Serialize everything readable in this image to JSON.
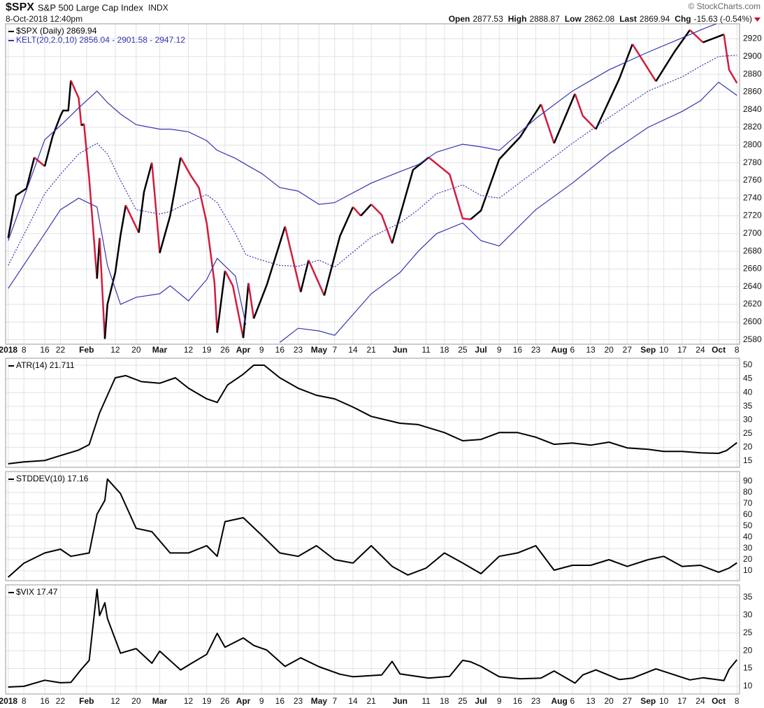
{
  "chart_data": [
    {
      "type": "line",
      "title": "$SPX",
      "subtitle": "S&P 500 Large Cap Index",
      "exchange": "INDX",
      "date": "8-Oct-2018 12:40pm",
      "credit": "© StockCharts.com",
      "quote": [
        {
          "label": "Open",
          "value": 2877.53
        },
        {
          "label": "High",
          "value": 2888.87
        },
        {
          "label": "Low",
          "value": 2862.08
        },
        {
          "label": "Last",
          "value": 2869.94
        },
        {
          "label": "Chg",
          "value": "-15.63 (-0.54%)"
        }
      ],
      "xlim": [
        "2018-01-01",
        "2018-10-09"
      ],
      "xticks": [
        {
          "value": "2018-01-02",
          "label": "2018"
        },
        {
          "value": "2018-01-08",
          "label": "8"
        },
        {
          "value": "2018-01-16",
          "label": "16"
        },
        {
          "value": "2018-01-22",
          "label": "22"
        },
        {
          "value": "2018-02-01",
          "label": "Feb"
        },
        {
          "value": "2018-02-12",
          "label": "12"
        },
        {
          "value": "2018-02-20",
          "label": "20"
        },
        {
          "value": "2018-03-01",
          "label": "Mar"
        },
        {
          "value": "2018-03-12",
          "label": "12"
        },
        {
          "value": "2018-03-19",
          "label": "19"
        },
        {
          "value": "2018-03-26",
          "label": "26"
        },
        {
          "value": "2018-04-02",
          "label": "Apr"
        },
        {
          "value": "2018-04-09",
          "label": "9"
        },
        {
          "value": "2018-04-16",
          "label": "16"
        },
        {
          "value": "2018-04-23",
          "label": "23"
        },
        {
          "value": "2018-05-01",
          "label": "May"
        },
        {
          "value": "2018-05-07",
          "label": "7"
        },
        {
          "value": "2018-05-14",
          "label": "14"
        },
        {
          "value": "2018-05-21",
          "label": "21"
        },
        {
          "value": "2018-06-01",
          "label": "Jun"
        },
        {
          "value": "2018-06-11",
          "label": "11"
        },
        {
          "value": "2018-06-18",
          "label": "18"
        },
        {
          "value": "2018-06-25",
          "label": "25"
        },
        {
          "value": "2018-07-02",
          "label": "Jul"
        },
        {
          "value": "2018-07-09",
          "label": "9"
        },
        {
          "value": "2018-07-16",
          "label": "16"
        },
        {
          "value": "2018-07-23",
          "label": "23"
        },
        {
          "value": "2018-08-01",
          "label": "Aug"
        },
        {
          "value": "2018-08-06",
          "label": "6"
        },
        {
          "value": "2018-08-13",
          "label": "13"
        },
        {
          "value": "2018-08-20",
          "label": "20"
        },
        {
          "value": "2018-08-27",
          "label": "27"
        },
        {
          "value": "2018-09-04",
          "label": "Sep"
        },
        {
          "value": "2018-09-10",
          "label": "10"
        },
        {
          "value": "2018-09-17",
          "label": "17"
        },
        {
          "value": "2018-09-24",
          "label": "24"
        },
        {
          "value": "2018-10-01",
          "label": "Oct"
        },
        {
          "value": "2018-10-08",
          "label": "8"
        }
      ],
      "ylim": [
        2575,
        2937
      ],
      "yticks": [
        2580,
        2600,
        2620,
        2640,
        2660,
        2680,
        2700,
        2720,
        2740,
        2760,
        2780,
        2800,
        2820,
        2840,
        2860,
        2880,
        2900,
        2920
      ],
      "grid": true,
      "series": [
        {
          "name": "$SPX (Daily) 2869.94",
          "up_color": "#000000",
          "down_color": "#d21c3c",
          "x": [
            "2018-01-02",
            "2018-01-05",
            "2018-01-09",
            "2018-01-12",
            "2018-01-16",
            "2018-01-19",
            "2018-01-22",
            "2018-01-23",
            "2018-01-25",
            "2018-01-26",
            "2018-01-29",
            "2018-01-30",
            "2018-01-31",
            "2018-02-02",
            "2018-02-05",
            "2018-02-06",
            "2018-02-08",
            "2018-02-09",
            "2018-02-12",
            "2018-02-14",
            "2018-02-16",
            "2018-02-21",
            "2018-02-23",
            "2018-02-26",
            "2018-02-28",
            "2018-03-01",
            "2018-03-05",
            "2018-03-09",
            "2018-03-13",
            "2018-03-16",
            "2018-03-19",
            "2018-03-22",
            "2018-03-23",
            "2018-03-26",
            "2018-03-29",
            "2018-04-02",
            "2018-04-04",
            "2018-04-06",
            "2018-04-11",
            "2018-04-18",
            "2018-04-24",
            "2018-04-27",
            "2018-05-03",
            "2018-05-09",
            "2018-05-14",
            "2018-05-17",
            "2018-05-21",
            "2018-05-25",
            "2018-05-29",
            "2018-06-06",
            "2018-06-12",
            "2018-06-20",
            "2018-06-25",
            "2018-06-28",
            "2018-07-02",
            "2018-07-09",
            "2018-07-17",
            "2018-07-25",
            "2018-07-30",
            "2018-08-07",
            "2018-08-10",
            "2018-08-15",
            "2018-08-24",
            "2018-08-29",
            "2018-09-07",
            "2018-09-14",
            "2018-09-20",
            "2018-09-25",
            "2018-10-03",
            "2018-10-05",
            "2018-10-08"
          ],
          "values": [
            2695,
            2743,
            2751,
            2786,
            2776,
            2810,
            2833,
            2839,
            2839,
            2873,
            2853,
            2822,
            2824,
            2762,
            2649,
            2695,
            2581,
            2620,
            2656,
            2698,
            2732,
            2701,
            2747,
            2780,
            2714,
            2678,
            2720,
            2786,
            2765,
            2752,
            2712,
            2644,
            2588,
            2658,
            2641,
            2582,
            2644,
            2604,
            2642,
            2708,
            2634,
            2670,
            2630,
            2697,
            2730,
            2720,
            2733,
            2721,
            2689,
            2772,
            2786,
            2767,
            2717,
            2716,
            2726,
            2784,
            2809,
            2846,
            2802,
            2858,
            2833,
            2818,
            2875,
            2914,
            2872,
            2905,
            2930,
            2916,
            2925,
            2885,
            2869.94
          ]
        }
      ],
      "bands": {
        "name": "KELT(20,2.0,10) 2856.04 - 2901.58 - 2947.12",
        "color": "#3535b0",
        "x": [
          "2018-01-02",
          "2018-01-16",
          "2018-01-22",
          "2018-01-29",
          "2018-02-05",
          "2018-02-09",
          "2018-02-14",
          "2018-02-20",
          "2018-03-01",
          "2018-03-05",
          "2018-03-12",
          "2018-03-19",
          "2018-03-23",
          "2018-03-30",
          "2018-04-03",
          "2018-04-09",
          "2018-04-16",
          "2018-04-23",
          "2018-05-01",
          "2018-05-07",
          "2018-05-21",
          "2018-06-01",
          "2018-06-08",
          "2018-06-15",
          "2018-06-25",
          "2018-07-02",
          "2018-07-09",
          "2018-07-23",
          "2018-08-06",
          "2018-08-20",
          "2018-09-04",
          "2018-09-17",
          "2018-09-24",
          "2018-10-01",
          "2018-10-08"
        ],
        "upper": [
          2692,
          2806,
          2822,
          2842,
          2861,
          2848,
          2835,
          2823,
          2818,
          2818,
          2815,
          2805,
          2794,
          2785,
          2778,
          2768,
          2752,
          2748,
          2733,
          2735,
          2757,
          2770,
          2778,
          2792,
          2801,
          2798,
          2794,
          2830,
          2861,
          2885,
          2905,
          2921,
          2930,
          2938,
          2947.12
        ],
        "middle": [
          2664,
          2745,
          2767,
          2790,
          2802,
          2790,
          2760,
          2727,
          2722,
          2725,
          2735,
          2744,
          2735,
          2700,
          2676,
          2670,
          2664,
          2663,
          2670,
          2662,
          2696,
          2712,
          2727,
          2745,
          2755,
          2743,
          2740,
          2771,
          2802,
          2831,
          2861,
          2877,
          2889,
          2900,
          2901.58
        ],
        "lower": [
          2638,
          2700,
          2727,
          2740,
          2730,
          2664,
          2620,
          2628,
          2632,
          2641,
          2624,
          2648,
          2672,
          2652,
          2597,
          null,
          2577,
          2593,
          2590,
          2585,
          2632,
          2656,
          2680,
          2700,
          2712,
          2692,
          2686,
          2727,
          2757,
          2790,
          2820,
          2838,
          2850,
          2871,
          2856.04
        ]
      }
    },
    {
      "type": "line",
      "ylim": [
        12.7,
        52.55
      ],
      "yticks": [
        15,
        20,
        25,
        30,
        35,
        40,
        45,
        50
      ],
      "grid": true,
      "series": [
        {
          "name": "ATR(14) 21.711",
          "color": "#000000",
          "x": [
            "2018-01-02",
            "2018-01-08",
            "2018-01-16",
            "2018-01-22",
            "2018-01-29",
            "2018-02-02",
            "2018-02-06",
            "2018-02-09",
            "2018-02-12",
            "2018-02-16",
            "2018-02-22",
            "2018-03-01",
            "2018-03-07",
            "2018-03-12",
            "2018-03-19",
            "2018-03-23",
            "2018-03-27",
            "2018-04-02",
            "2018-04-06",
            "2018-04-10",
            "2018-04-16",
            "2018-04-23",
            "2018-04-30",
            "2018-05-07",
            "2018-05-14",
            "2018-05-21",
            "2018-06-01",
            "2018-06-08",
            "2018-06-18",
            "2018-06-25",
            "2018-07-02",
            "2018-07-09",
            "2018-07-16",
            "2018-07-23",
            "2018-07-30",
            "2018-08-06",
            "2018-08-13",
            "2018-08-20",
            "2018-08-27",
            "2018-09-04",
            "2018-09-10",
            "2018-09-17",
            "2018-09-24",
            "2018-10-01",
            "2018-10-04",
            "2018-10-08"
          ],
          "values": [
            14,
            14.7,
            15.2,
            17,
            19,
            21,
            32.6,
            39,
            45.4,
            46.2,
            44,
            43.4,
            45.4,
            41.6,
            37.7,
            36.4,
            42.8,
            46.7,
            50,
            50,
            45.4,
            41.6,
            39,
            37.7,
            34.7,
            31.3,
            28.8,
            28.3,
            25.4,
            22.4,
            22.9,
            25.4,
            25.4,
            23.7,
            21.1,
            21.6,
            20.8,
            21.9,
            19.8,
            19.3,
            18.5,
            18.5,
            18,
            17.8,
            18.8,
            21.711
          ]
        }
      ]
    },
    {
      "type": "line",
      "ylim": [
        1.25,
        98.75
      ],
      "yticks": [
        10,
        20,
        30,
        40,
        50,
        60,
        70,
        80,
        90
      ],
      "grid": true,
      "series": [
        {
          "name": "STDDEV(10) 17.16",
          "color": "#000000",
          "x": [
            "2018-01-02",
            "2018-01-08",
            "2018-01-16",
            "2018-01-22",
            "2018-01-26",
            "2018-02-02",
            "2018-02-05",
            "2018-02-08",
            "2018-02-09",
            "2018-02-14",
            "2018-02-20",
            "2018-02-26",
            "2018-03-05",
            "2018-03-12",
            "2018-03-19",
            "2018-03-23",
            "2018-03-26",
            "2018-04-02",
            "2018-04-09",
            "2018-04-16",
            "2018-04-23",
            "2018-04-30",
            "2018-05-07",
            "2018-05-14",
            "2018-05-21",
            "2018-05-29",
            "2018-06-04",
            "2018-06-11",
            "2018-06-18",
            "2018-06-25",
            "2018-07-02",
            "2018-07-09",
            "2018-07-16",
            "2018-07-23",
            "2018-07-30",
            "2018-08-06",
            "2018-08-13",
            "2018-08-20",
            "2018-08-27",
            "2018-09-04",
            "2018-09-10",
            "2018-09-17",
            "2018-09-24",
            "2018-10-01",
            "2018-10-05",
            "2018-10-08"
          ],
          "values": [
            4.4,
            16.9,
            26,
            29.4,
            23,
            26,
            60.6,
            73,
            92,
            79,
            48,
            45,
            26,
            26,
            32.5,
            23,
            54,
            57.5,
            42,
            26,
            23,
            32.5,
            20,
            17,
            32.5,
            14,
            6.3,
            12.5,
            26,
            17,
            7.5,
            23,
            26,
            32.5,
            10.6,
            15,
            15,
            20,
            14,
            20,
            23,
            14,
            15,
            8.8,
            12.5,
            17.16
          ]
        }
      ]
    },
    {
      "type": "line",
      "ylim": [
        7.83,
        38.54
      ],
      "yticks": [
        10,
        15,
        20,
        25,
        30,
        35
      ],
      "grid": true,
      "series": [
        {
          "name": "$VIX 17.47",
          "color": "#000000",
          "x": [
            "2018-01-02",
            "2018-01-08",
            "2018-01-16",
            "2018-01-22",
            "2018-01-26",
            "2018-01-30",
            "2018-02-02",
            "2018-02-05",
            "2018-02-06",
            "2018-02-08",
            "2018-02-09",
            "2018-02-14",
            "2018-02-20",
            "2018-02-26",
            "2018-03-01",
            "2018-03-09",
            "2018-03-13",
            "2018-03-19",
            "2018-03-23",
            "2018-03-26",
            "2018-04-02",
            "2018-04-06",
            "2018-04-11",
            "2018-04-18",
            "2018-04-24",
            "2018-05-01",
            "2018-05-09",
            "2018-05-14",
            "2018-05-25",
            "2018-05-29",
            "2018-06-01",
            "2018-06-12",
            "2018-06-20",
            "2018-06-25",
            "2018-06-28",
            "2018-07-02",
            "2018-07-09",
            "2018-07-17",
            "2018-07-25",
            "2018-07-30",
            "2018-08-07",
            "2018-08-10",
            "2018-08-15",
            "2018-08-24",
            "2018-08-29",
            "2018-09-07",
            "2018-09-20",
            "2018-09-25",
            "2018-10-03",
            "2018-10-05",
            "2018-10-08"
          ],
          "values": [
            9.8,
            10,
            11.7,
            11,
            11.1,
            14.8,
            17.3,
            37.3,
            29.9,
            33.5,
            29.1,
            19.3,
            20.6,
            16.5,
            19.9,
            14.6,
            16.4,
            19,
            24.9,
            21,
            23.6,
            21.5,
            20.2,
            15.6,
            18,
            15.5,
            13.4,
            12.7,
            13.2,
            17,
            13.5,
            12.3,
            12.8,
            17.3,
            16.9,
            15.6,
            12.7,
            12.1,
            12.3,
            14.3,
            10.9,
            13.2,
            14.6,
            11.9,
            12.3,
            14.9,
            11.8,
            12.4,
            11.6,
            14.8,
            17.47
          ]
        }
      ]
    }
  ]
}
